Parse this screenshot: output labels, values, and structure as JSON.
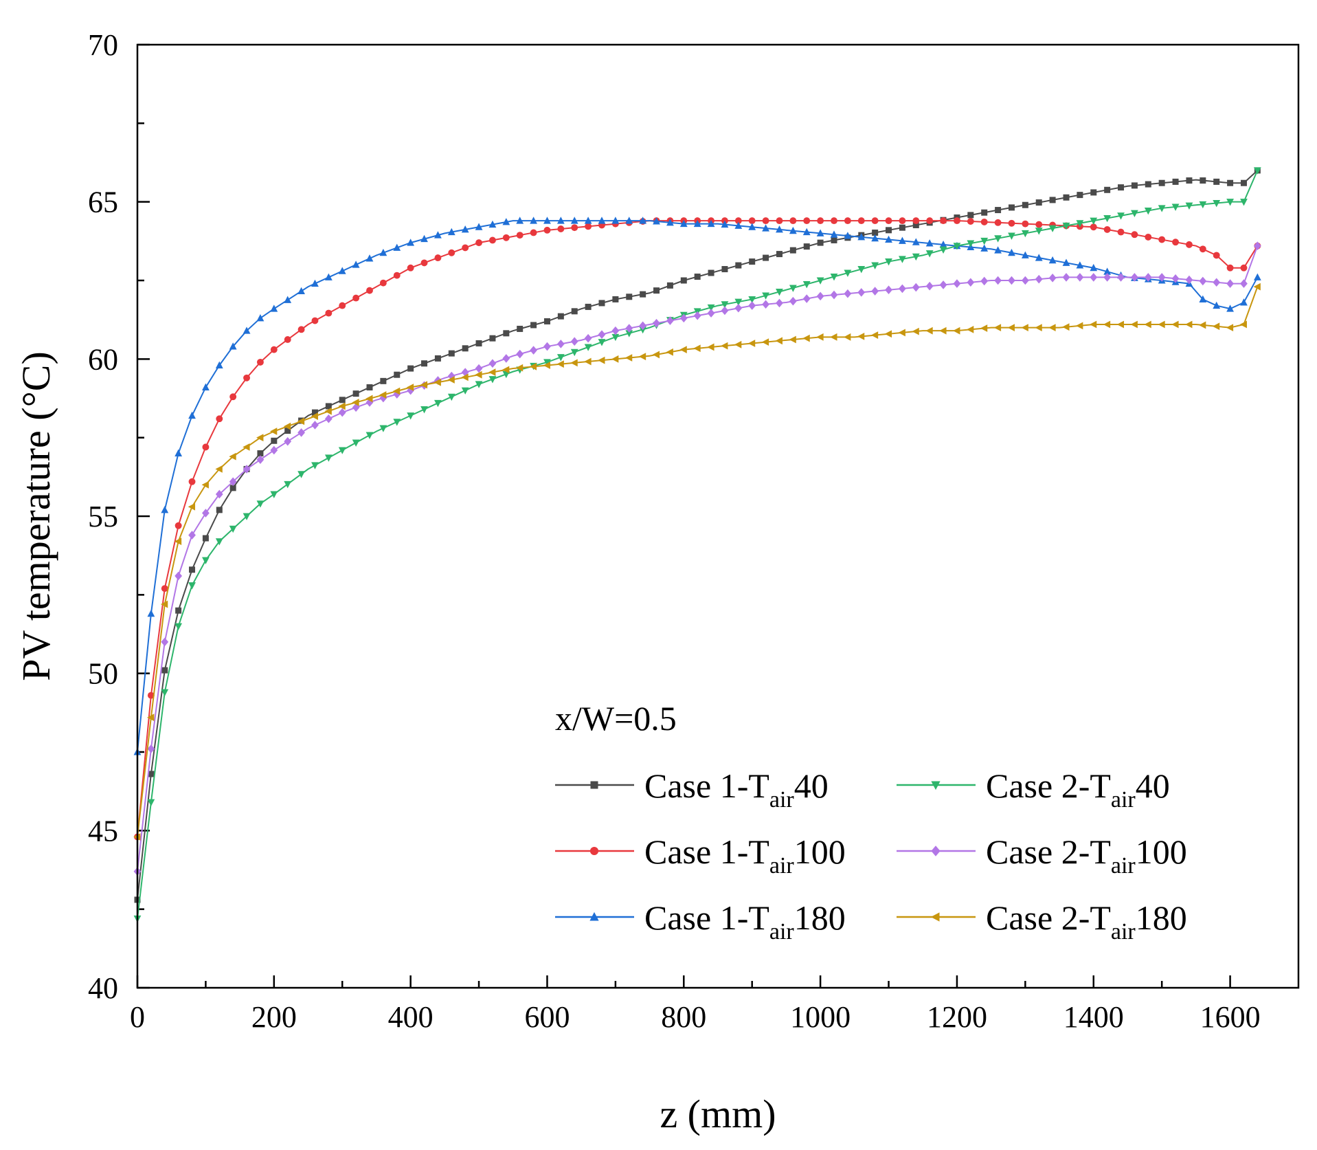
{
  "chart_data": {
    "type": "line",
    "title": "",
    "xlabel": "z (mm)",
    "ylabel": "PV temperature (°C)",
    "xlim": [
      0,
      1700
    ],
    "ylim": [
      40,
      70
    ],
    "x_ticks": [
      "0",
      "200",
      "400",
      "600",
      "800",
      "1000",
      "1200",
      "1400",
      "1600"
    ],
    "y_ticks": [
      "40",
      "45",
      "50",
      "55",
      "60",
      "65",
      "70"
    ],
    "legend_title": "x/W=0.5",
    "legend_position": "bottom-right",
    "series": [
      {
        "name": "Case 1-Tair40",
        "label_prefix": "Case 1-T",
        "label_sub": "air",
        "label_suffix": "40",
        "color": "#4a4a4a",
        "marker": "square",
        "points": [
          [
            0,
            42.8
          ],
          [
            20,
            46.8
          ],
          [
            40,
            50.1
          ],
          [
            60,
            52.0
          ],
          [
            80,
            53.3
          ],
          [
            100,
            54.3
          ],
          [
            120,
            55.2
          ],
          [
            140,
            55.9
          ],
          [
            160,
            56.5
          ],
          [
            180,
            57.0
          ],
          [
            200,
            57.4
          ],
          [
            250,
            58.2
          ],
          [
            300,
            58.7
          ],
          [
            350,
            59.2
          ],
          [
            400,
            59.7
          ],
          [
            450,
            60.1
          ],
          [
            500,
            60.5
          ],
          [
            550,
            60.9
          ],
          [
            600,
            61.2
          ],
          [
            650,
            61.6
          ],
          [
            700,
            61.9
          ],
          [
            750,
            62.1
          ],
          [
            800,
            62.5
          ],
          [
            850,
            62.8
          ],
          [
            900,
            63.1
          ],
          [
            950,
            63.4
          ],
          [
            1000,
            63.7
          ],
          [
            1050,
            63.9
          ],
          [
            1100,
            64.1
          ],
          [
            1150,
            64.3
          ],
          [
            1200,
            64.5
          ],
          [
            1250,
            64.7
          ],
          [
            1300,
            64.9
          ],
          [
            1350,
            65.1
          ],
          [
            1400,
            65.3
          ],
          [
            1450,
            65.5
          ],
          [
            1500,
            65.6
          ],
          [
            1550,
            65.7
          ],
          [
            1600,
            65.6
          ],
          [
            1620,
            65.6
          ],
          [
            1640,
            66.0
          ]
        ]
      },
      {
        "name": "Case 1-Tair100",
        "label_prefix": "Case 1-T",
        "label_sub": "air",
        "label_suffix": "100",
        "color": "#e8383d",
        "marker": "circle",
        "points": [
          [
            0,
            44.8
          ],
          [
            20,
            49.3
          ],
          [
            40,
            52.7
          ],
          [
            60,
            54.7
          ],
          [
            80,
            56.1
          ],
          [
            100,
            57.2
          ],
          [
            120,
            58.1
          ],
          [
            140,
            58.8
          ],
          [
            160,
            59.4
          ],
          [
            180,
            59.9
          ],
          [
            200,
            60.3
          ],
          [
            250,
            61.1
          ],
          [
            300,
            61.7
          ],
          [
            350,
            62.3
          ],
          [
            400,
            62.9
          ],
          [
            450,
            63.3
          ],
          [
            500,
            63.7
          ],
          [
            550,
            63.9
          ],
          [
            600,
            64.1
          ],
          [
            650,
            64.2
          ],
          [
            700,
            64.3
          ],
          [
            750,
            64.4
          ],
          [
            800,
            64.4
          ],
          [
            900,
            64.4
          ],
          [
            1000,
            64.4
          ],
          [
            1100,
            64.4
          ],
          [
            1200,
            64.4
          ],
          [
            1300,
            64.3
          ],
          [
            1400,
            64.2
          ],
          [
            1450,
            64.0
          ],
          [
            1500,
            63.8
          ],
          [
            1550,
            63.6
          ],
          [
            1580,
            63.3
          ],
          [
            1600,
            62.9
          ],
          [
            1620,
            62.9
          ],
          [
            1640,
            63.6
          ]
        ]
      },
      {
        "name": "Case 1-Tair180",
        "label_prefix": "Case 1-T",
        "label_sub": "air",
        "label_suffix": "180",
        "color": "#1f6fd6",
        "marker": "triangle-up",
        "points": [
          [
            0,
            47.5
          ],
          [
            20,
            51.9
          ],
          [
            40,
            55.2
          ],
          [
            60,
            57.0
          ],
          [
            80,
            58.2
          ],
          [
            100,
            59.1
          ],
          [
            120,
            59.8
          ],
          [
            140,
            60.4
          ],
          [
            160,
            60.9
          ],
          [
            180,
            61.3
          ],
          [
            200,
            61.6
          ],
          [
            250,
            62.3
          ],
          [
            300,
            62.8
          ],
          [
            350,
            63.3
          ],
          [
            400,
            63.7
          ],
          [
            450,
            64.0
          ],
          [
            500,
            64.2
          ],
          [
            550,
            64.4
          ],
          [
            600,
            64.4
          ],
          [
            650,
            64.4
          ],
          [
            700,
            64.4
          ],
          [
            750,
            64.4
          ],
          [
            800,
            64.3
          ],
          [
            850,
            64.3
          ],
          [
            900,
            64.2
          ],
          [
            950,
            64.1
          ],
          [
            1000,
            64.0
          ],
          [
            1050,
            63.9
          ],
          [
            1100,
            63.8
          ],
          [
            1150,
            63.7
          ],
          [
            1200,
            63.6
          ],
          [
            1250,
            63.5
          ],
          [
            1300,
            63.3
          ],
          [
            1350,
            63.1
          ],
          [
            1400,
            62.9
          ],
          [
            1450,
            62.6
          ],
          [
            1500,
            62.5
          ],
          [
            1540,
            62.4
          ],
          [
            1560,
            61.9
          ],
          [
            1580,
            61.7
          ],
          [
            1600,
            61.6
          ],
          [
            1620,
            61.8
          ],
          [
            1640,
            62.6
          ]
        ]
      },
      {
        "name": "Case 2-Tair40",
        "label_prefix": "Case 2-T",
        "label_sub": "air",
        "label_suffix": "40",
        "color": "#2db56b",
        "marker": "triangle-down",
        "points": [
          [
            0,
            42.2
          ],
          [
            20,
            45.9
          ],
          [
            40,
            49.4
          ],
          [
            60,
            51.5
          ],
          [
            80,
            52.8
          ],
          [
            100,
            53.6
          ],
          [
            120,
            54.2
          ],
          [
            140,
            54.6
          ],
          [
            160,
            55.0
          ],
          [
            180,
            55.4
          ],
          [
            200,
            55.7
          ],
          [
            250,
            56.5
          ],
          [
            300,
            57.1
          ],
          [
            350,
            57.7
          ],
          [
            400,
            58.2
          ],
          [
            450,
            58.7
          ],
          [
            500,
            59.2
          ],
          [
            550,
            59.6
          ],
          [
            600,
            59.9
          ],
          [
            650,
            60.3
          ],
          [
            700,
            60.7
          ],
          [
            750,
            61.0
          ],
          [
            800,
            61.4
          ],
          [
            850,
            61.7
          ],
          [
            900,
            61.9
          ],
          [
            950,
            62.2
          ],
          [
            1000,
            62.5
          ],
          [
            1050,
            62.8
          ],
          [
            1100,
            63.1
          ],
          [
            1150,
            63.3
          ],
          [
            1200,
            63.6
          ],
          [
            1250,
            63.8
          ],
          [
            1300,
            64.0
          ],
          [
            1350,
            64.2
          ],
          [
            1400,
            64.4
          ],
          [
            1450,
            64.6
          ],
          [
            1500,
            64.8
          ],
          [
            1550,
            64.9
          ],
          [
            1600,
            65.0
          ],
          [
            1620,
            65.0
          ],
          [
            1640,
            66.0
          ]
        ]
      },
      {
        "name": "Case 2-Tair100",
        "label_prefix": "Case 2-T",
        "label_sub": "air",
        "label_suffix": "100",
        "color": "#b276e6",
        "marker": "diamond",
        "points": [
          [
            0,
            43.7
          ],
          [
            20,
            47.6
          ],
          [
            40,
            51.0
          ],
          [
            60,
            53.1
          ],
          [
            80,
            54.4
          ],
          [
            100,
            55.1
          ],
          [
            120,
            55.7
          ],
          [
            140,
            56.1
          ],
          [
            160,
            56.5
          ],
          [
            180,
            56.8
          ],
          [
            200,
            57.1
          ],
          [
            250,
            57.8
          ],
          [
            300,
            58.3
          ],
          [
            350,
            58.7
          ],
          [
            400,
            59.0
          ],
          [
            450,
            59.4
          ],
          [
            500,
            59.7
          ],
          [
            550,
            60.1
          ],
          [
            600,
            60.4
          ],
          [
            650,
            60.6
          ],
          [
            700,
            60.9
          ],
          [
            750,
            61.1
          ],
          [
            800,
            61.3
          ],
          [
            850,
            61.5
          ],
          [
            900,
            61.7
          ],
          [
            950,
            61.8
          ],
          [
            1000,
            62.0
          ],
          [
            1050,
            62.1
          ],
          [
            1100,
            62.2
          ],
          [
            1150,
            62.3
          ],
          [
            1200,
            62.4
          ],
          [
            1250,
            62.5
          ],
          [
            1300,
            62.5
          ],
          [
            1350,
            62.6
          ],
          [
            1400,
            62.6
          ],
          [
            1450,
            62.6
          ],
          [
            1500,
            62.6
          ],
          [
            1550,
            62.5
          ],
          [
            1600,
            62.4
          ],
          [
            1620,
            62.4
          ],
          [
            1640,
            63.6
          ]
        ]
      },
      {
        "name": "Case 2-Tair180",
        "label_prefix": "Case 2-T",
        "label_sub": "air",
        "label_suffix": "180",
        "color": "#c8960f",
        "marker": "triangle-left",
        "points": [
          [
            0,
            44.8
          ],
          [
            20,
            48.6
          ],
          [
            40,
            52.2
          ],
          [
            60,
            54.2
          ],
          [
            80,
            55.3
          ],
          [
            100,
            56.0
          ],
          [
            120,
            56.5
          ],
          [
            140,
            56.9
          ],
          [
            160,
            57.2
          ],
          [
            180,
            57.5
          ],
          [
            200,
            57.7
          ],
          [
            250,
            58.1
          ],
          [
            300,
            58.5
          ],
          [
            350,
            58.8
          ],
          [
            400,
            59.1
          ],
          [
            450,
            59.3
          ],
          [
            500,
            59.5
          ],
          [
            550,
            59.7
          ],
          [
            600,
            59.8
          ],
          [
            650,
            59.9
          ],
          [
            700,
            60.0
          ],
          [
            750,
            60.1
          ],
          [
            800,
            60.3
          ],
          [
            850,
            60.4
          ],
          [
            900,
            60.5
          ],
          [
            950,
            60.6
          ],
          [
            1000,
            60.7
          ],
          [
            1050,
            60.7
          ],
          [
            1100,
            60.8
          ],
          [
            1150,
            60.9
          ],
          [
            1200,
            60.9
          ],
          [
            1250,
            61.0
          ],
          [
            1300,
            61.0
          ],
          [
            1350,
            61.0
          ],
          [
            1400,
            61.1
          ],
          [
            1450,
            61.1
          ],
          [
            1500,
            61.1
          ],
          [
            1550,
            61.1
          ],
          [
            1600,
            61.0
          ],
          [
            1620,
            61.1
          ],
          [
            1640,
            62.3
          ]
        ]
      }
    ]
  }
}
